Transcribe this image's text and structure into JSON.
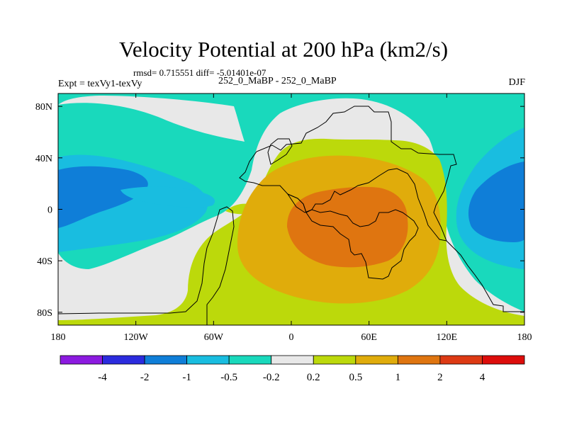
{
  "chart_data": {
    "type": "heatmap",
    "title": "Velocity Potential at 200 hPa (km2/s)",
    "stats": "rmsd= 0.715551 diff= -5.01401e-07",
    "left_label": "Expt = texVy1-texVy",
    "center_label": "252_0_MaBP - 252_0_MaBP",
    "right_label": "DJF",
    "xlim": [
      -180,
      180
    ],
    "ylim": [
      -90,
      90
    ],
    "x_tick_labels": [
      "180",
      "120W",
      "60W",
      "0",
      "60E",
      "120E",
      "180"
    ],
    "y_tick_labels": [
      "80N",
      "40N",
      "0",
      "40S",
      "80S"
    ],
    "colorbar_labels": [
      "-4",
      "-2",
      "-1",
      "-0.5",
      "-0.2",
      "0.2",
      "0.5",
      "1",
      "2",
      "4"
    ],
    "colorbar_colors": [
      "#8c1ae0",
      "#2b2bde",
      "#0f7ed8",
      "#19bde0",
      "#19d9bc",
      "#e8e8e8",
      "#bcd90b",
      "#e0ac0b",
      "#df7510",
      "#dd3a14",
      "#dd0d0b"
    ]
  }
}
